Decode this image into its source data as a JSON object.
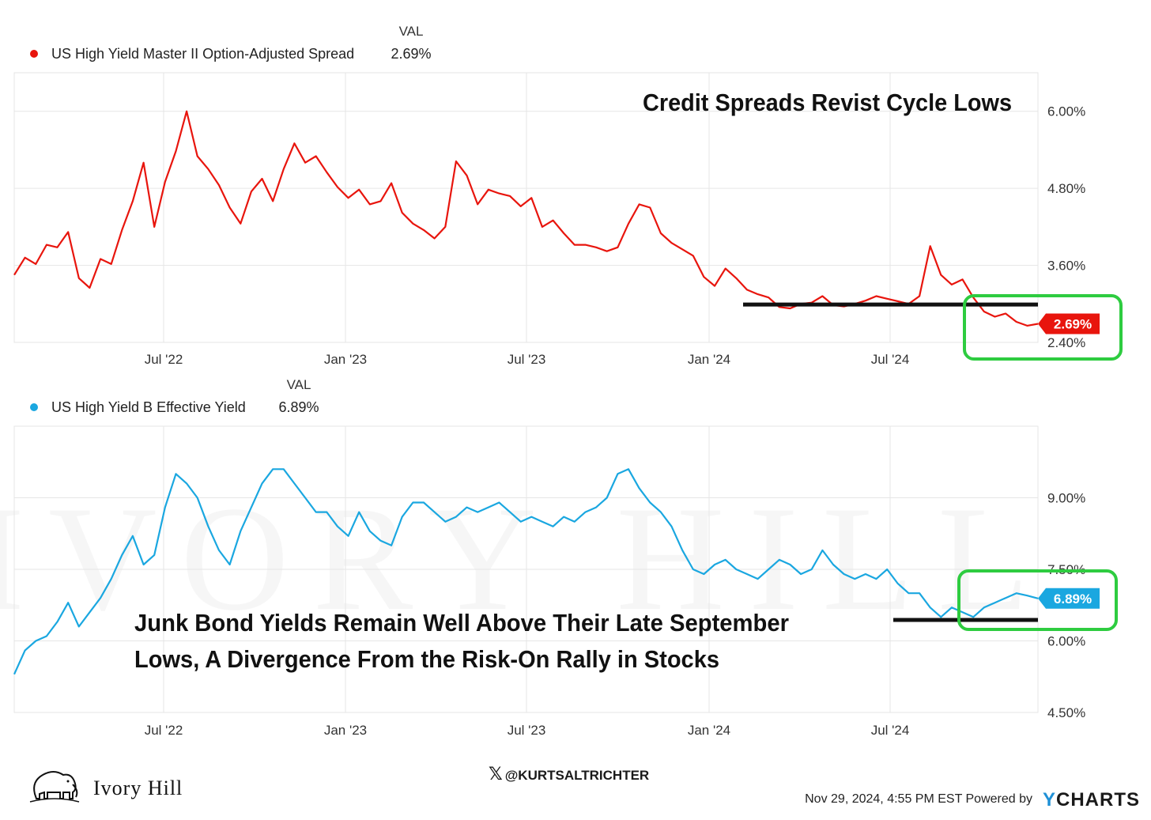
{
  "watermark": {
    "text": "IVORY HILL"
  },
  "footer": {
    "brand": "Ivory Hill",
    "handle": "@KURTSALTRICHTER",
    "timestamp": "Nov 29, 2024, 4:55 PM EST Powered by",
    "provider": "YCHARTS"
  },
  "colors": {
    "spread": "#e8150d",
    "yield": "#1aa7e0",
    "highlight": "#2ecc40",
    "support": "#111111",
    "grid": "#e6e6e6"
  },
  "chart_data": [
    {
      "type": "line",
      "legend_header": "VAL",
      "series": [
        {
          "name": "US High Yield Master II Option-Adjusted Spread",
          "value_label": "2.69%",
          "values": [
            3.45,
            3.72,
            3.62,
            3.92,
            3.88,
            4.12,
            3.4,
            3.25,
            3.7,
            3.62,
            4.15,
            4.6,
            5.2,
            4.2,
            4.9,
            5.38,
            6.0,
            5.3,
            5.1,
            4.85,
            4.5,
            4.25,
            4.75,
            4.95,
            4.6,
            5.1,
            5.5,
            5.2,
            5.3,
            5.05,
            4.82,
            4.65,
            4.78,
            4.55,
            4.6,
            4.88,
            4.42,
            4.25,
            4.15,
            4.02,
            4.2,
            5.22,
            5.0,
            4.55,
            4.78,
            4.72,
            4.68,
            4.52,
            4.65,
            4.2,
            4.3,
            4.1,
            3.92,
            3.92,
            3.88,
            3.82,
            3.88,
            4.25,
            4.55,
            4.5,
            4.1,
            3.95,
            3.85,
            3.75,
            3.42,
            3.28,
            3.55,
            3.4,
            3.22,
            3.15,
            3.1,
            2.95,
            2.93,
            3.0,
            3.02,
            3.12,
            2.98,
            2.96,
            3.0,
            3.05,
            3.12,
            3.08,
            3.04,
            3.0,
            3.12,
            3.9,
            3.45,
            3.3,
            3.38,
            3.1,
            2.88,
            2.8,
            2.85,
            2.72,
            2.66,
            2.69
          ]
        }
      ],
      "x_ticks": [
        "Jul '22",
        "Jan '23",
        "Jul '23",
        "Jan '24",
        "Jul '24"
      ],
      "y_ticks": [
        "2.40%",
        "3.60%",
        "4.80%",
        "6.00%"
      ],
      "ylim": [
        2.4,
        6.6
      ],
      "annotation": "Credit Spreads Revist Cycle Lows",
      "support_level": 2.99,
      "current_value": 2.69,
      "current_label": "2.69%"
    },
    {
      "type": "line",
      "legend_header": "VAL",
      "series": [
        {
          "name": "US High Yield B Effective Yield",
          "value_label": "6.89%",
          "values": [
            5.3,
            5.8,
            6.0,
            6.1,
            6.4,
            6.8,
            6.3,
            6.6,
            6.9,
            7.3,
            7.8,
            8.2,
            7.6,
            7.8,
            8.8,
            9.5,
            9.3,
            9.0,
            8.4,
            7.9,
            7.6,
            8.3,
            8.8,
            9.3,
            9.6,
            9.6,
            9.3,
            9.0,
            8.7,
            8.7,
            8.4,
            8.2,
            8.7,
            8.3,
            8.1,
            8.0,
            8.6,
            8.9,
            8.9,
            8.7,
            8.5,
            8.6,
            8.8,
            8.7,
            8.8,
            8.9,
            8.7,
            8.5,
            8.6,
            8.5,
            8.4,
            8.6,
            8.5,
            8.7,
            8.8,
            9.0,
            9.5,
            9.6,
            9.2,
            8.9,
            8.7,
            8.4,
            7.9,
            7.5,
            7.4,
            7.6,
            7.7,
            7.5,
            7.4,
            7.3,
            7.5,
            7.7,
            7.6,
            7.4,
            7.5,
            7.9,
            7.6,
            7.4,
            7.3,
            7.4,
            7.3,
            7.5,
            7.2,
            7.0,
            7.0,
            6.7,
            6.5,
            6.7,
            6.6,
            6.5,
            6.7,
            6.8,
            6.9,
            7.0,
            6.95,
            6.89
          ]
        }
      ],
      "x_ticks": [
        "Jul '22",
        "Jan '23",
        "Jul '23",
        "Jan '24",
        "Jul '24"
      ],
      "y_ticks": [
        "4.50%",
        "6.00%",
        "7.50%",
        "9.00%"
      ],
      "ylim": [
        4.5,
        10.5
      ],
      "annotation_lines": [
        "Junk Bond Yields Remain Well Above Their Late September",
        "Lows, A Divergence From the Risk-On Rally in Stocks"
      ],
      "support_level": 6.44,
      "current_value": 6.89,
      "current_label": "6.89%"
    }
  ]
}
